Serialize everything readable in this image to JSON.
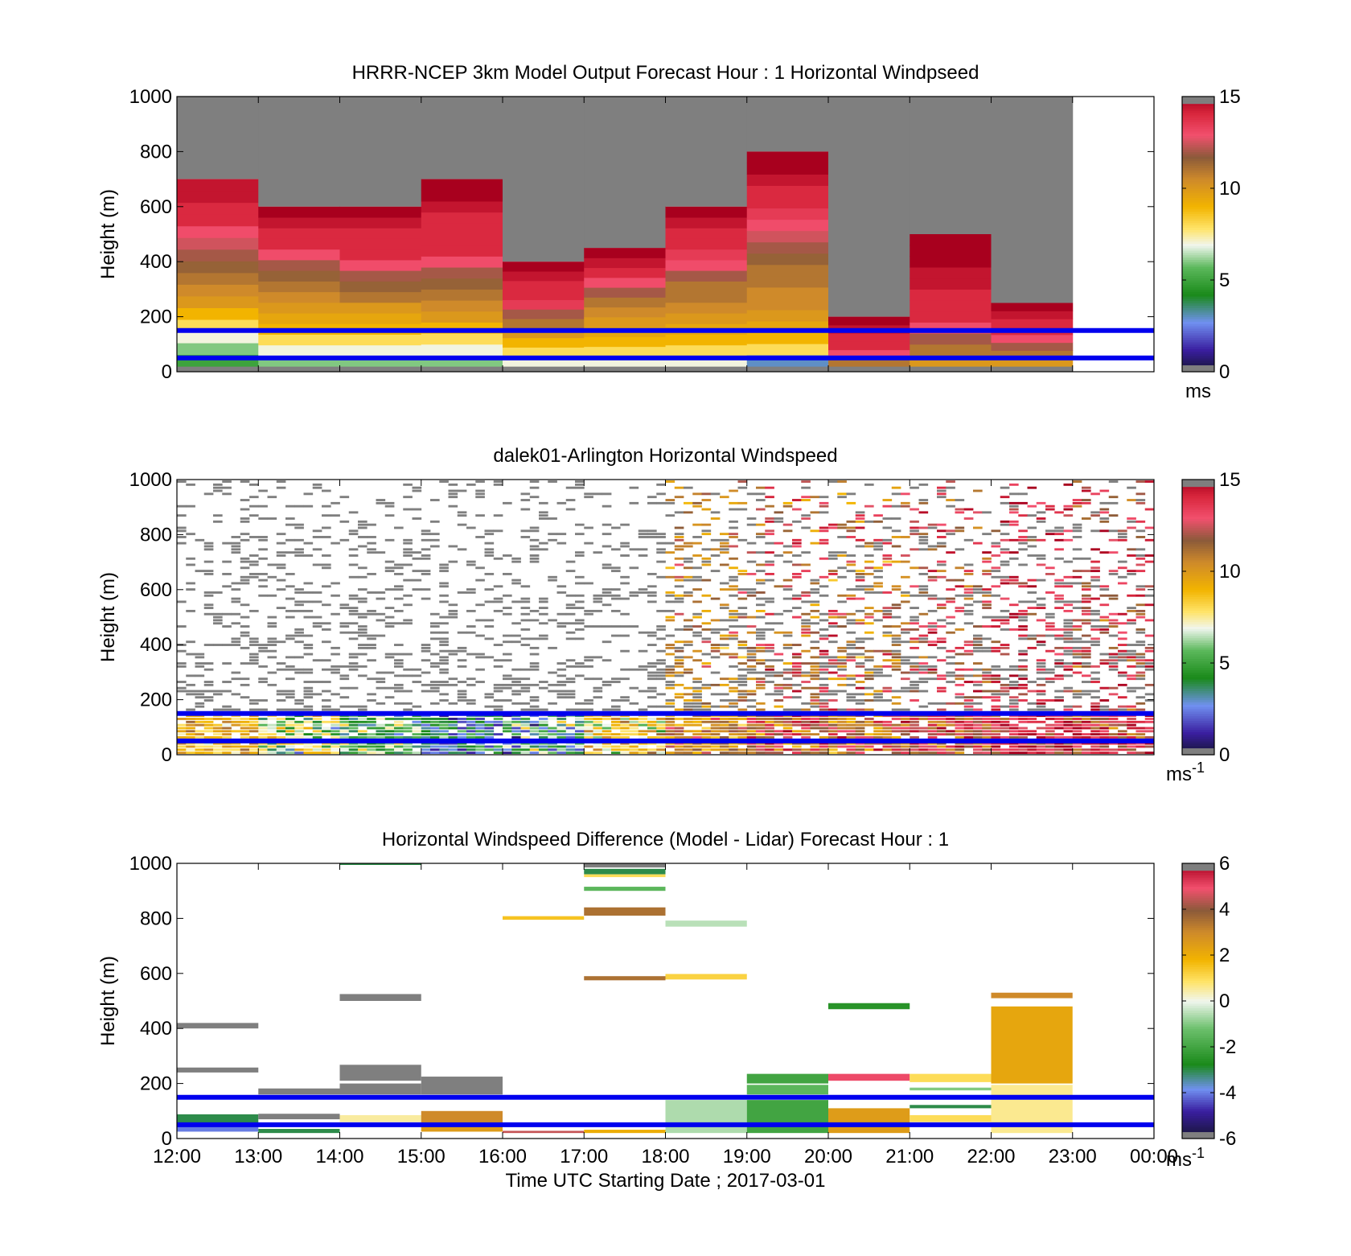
{
  "figure": {
    "xticks": [
      "12:00",
      "13:00",
      "14:00",
      "15:00",
      "16:00",
      "17:00",
      "18:00",
      "19:00",
      "20:00",
      "21:00",
      "22:00",
      "23:00",
      "00:00"
    ],
    "xlabel": "Time UTC  Starting Date ; 2017-03-01",
    "ref_lines_m": [
      150,
      50
    ],
    "ref_line_color": "#0000ee"
  },
  "chart_data": [
    {
      "type": "heatmap",
      "title": "HRRR-NCEP 3km Model Output   Forecast Hour : 1 Horizontal Windpseed",
      "ylabel": "Height (m)",
      "ylim": [
        0,
        1000
      ],
      "yticks": [
        "0",
        "200",
        "400",
        "600",
        "800",
        "1000"
      ],
      "colorbar": {
        "min": 0,
        "max": 15,
        "ticks": [
          "0",
          "5",
          "10",
          "15"
        ],
        "unit": "ms",
        "unit_sup": ""
      },
      "model_columns": [
        {
          "hour": "12:00",
          "top_m": 700,
          "speeds": [
            5,
            6,
            7,
            8,
            9,
            10,
            10.5,
            11,
            11.5,
            12,
            12.5,
            13,
            14,
            14,
            14.5,
            14.5
          ]
        },
        {
          "hour": "13:00",
          "top_m": 600,
          "speeds": [
            6,
            7,
            8,
            9,
            9.5,
            10,
            10.5,
            11,
            11.5,
            12,
            13,
            14,
            14,
            14.5,
            15
          ]
        },
        {
          "hour": "14:00",
          "top_m": 600,
          "speeds": [
            6,
            7,
            8,
            9,
            9.5,
            10,
            11,
            11.5,
            12,
            13,
            14,
            14,
            14,
            14.5,
            15
          ]
        },
        {
          "hour": "15:00",
          "top_m": 700,
          "speeds": [
            6,
            7,
            8,
            9,
            10,
            10.5,
            11,
            11.5,
            12,
            13,
            14,
            14,
            14,
            14,
            14.5,
            15,
            15
          ]
        },
        {
          "hour": "16:00",
          "top_m": 400,
          "speeds": [
            7,
            8,
            9,
            10,
            11,
            12,
            13.5,
            14,
            14,
            14.5,
            15
          ]
        },
        {
          "hour": "17:00",
          "top_m": 450,
          "speeds": [
            7,
            8,
            9,
            9.5,
            10,
            10.5,
            11,
            12,
            13,
            14,
            14.5,
            15
          ]
        },
        {
          "hour": "18:00",
          "top_m": 600,
          "speeds": [
            7,
            8,
            9,
            9.5,
            10,
            10.5,
            11,
            11,
            12,
            13,
            13.5,
            14,
            14,
            14.5,
            15
          ]
        },
        {
          "hour": "19:00",
          "top_m": 800,
          "speeds": [
            3,
            8,
            9,
            9.5,
            10,
            10.5,
            10.5,
            11,
            11,
            11.5,
            12,
            12.5,
            13,
            13.5,
            14,
            14,
            14.5,
            15,
            15
          ]
        },
        {
          "hour": "20:00",
          "top_m": 200,
          "speeds": [
            11,
            13,
            14,
            14,
            14.5,
            15
          ]
        },
        {
          "hour": "21:00",
          "top_m": 500,
          "speeds": [
            10,
            11,
            12,
            13,
            14,
            14,
            14,
            14.5,
            14.5,
            15,
            15,
            15
          ]
        },
        {
          "hour": "22:00",
          "top_m": 250,
          "speeds": [
            10,
            11,
            12,
            13,
            14,
            14,
            14.5,
            15
          ]
        }
      ]
    },
    {
      "type": "heatmap",
      "title": "dalek01-Arlington  Horizontal Windspeed",
      "ylabel": "Height (m)",
      "ylim": [
        0,
        1000
      ],
      "yticks": [
        "0",
        "200",
        "400",
        "600",
        "800",
        "1000"
      ],
      "colorbar": {
        "min": 0,
        "max": 15,
        "ticks": [
          "0",
          "5",
          "10",
          "15"
        ],
        "unit": "ms",
        "unit_sup": "-1"
      },
      "lidar_column_speeds": [
        {
          "hour": "12:00",
          "speeds": [
            9,
            10,
            8,
            10,
            9,
            9,
            8,
            9,
            10,
            8,
            9,
            10
          ]
        },
        {
          "hour": "13:00",
          "speeds": [
            7,
            8,
            4,
            7,
            3,
            8,
            9,
            8,
            7,
            6,
            8,
            5
          ]
        },
        {
          "hour": "14:00",
          "speeds": [
            4,
            6,
            5,
            7,
            6,
            5,
            4,
            6,
            5,
            7,
            5,
            4
          ]
        },
        {
          "hour": "15:00",
          "speeds": [
            3,
            4,
            2,
            3,
            4,
            2,
            3,
            5,
            4,
            3,
            4,
            5
          ]
        },
        {
          "hour": "16:00",
          "speeds": [
            2,
            4,
            6,
            3,
            7,
            5,
            2,
            6,
            4,
            3,
            7,
            5
          ]
        },
        {
          "hour": "17:00",
          "speeds": [
            8,
            9,
            10,
            6,
            8,
            9,
            7,
            10,
            8,
            9,
            7,
            8
          ]
        },
        {
          "hour": "18:00",
          "speeds": [
            9,
            10,
            11,
            10,
            12,
            9,
            11,
            10,
            12,
            11,
            10,
            11
          ]
        },
        {
          "hour": "19:00",
          "speeds": [
            10,
            11,
            12,
            13,
            11,
            14,
            12,
            10,
            13,
            11,
            12,
            14
          ]
        },
        {
          "hour": "20:00",
          "speeds": [
            9,
            10,
            11,
            13,
            12,
            10,
            14,
            11,
            13,
            12,
            10,
            11
          ]
        },
        {
          "hour": "21:00",
          "speeds": [
            11,
            12,
            13,
            14,
            12,
            11,
            13,
            14,
            12,
            13,
            11,
            14
          ]
        },
        {
          "hour": "22:00",
          "speeds": [
            12,
            13,
            14,
            14,
            13,
            15,
            14,
            12,
            13,
            14,
            15,
            13
          ]
        },
        {
          "hour": "23:00",
          "speeds": [
            11,
            12,
            13,
            14,
            14,
            13,
            14,
            12,
            14,
            13,
            12,
            14
          ]
        }
      ]
    },
    {
      "type": "heatmap",
      "title": "Horizontal Windspeed Difference (Model - Lidar) Forecast Hour : 1",
      "ylabel": "Height (m)",
      "ylim": [
        0,
        1000
      ],
      "yticks": [
        "0",
        "200",
        "400",
        "600",
        "800",
        "1000"
      ],
      "colorbar": {
        "min": -6,
        "max": 6,
        "ticks": [
          "-6",
          "-4",
          "-2",
          "0",
          "2",
          "4",
          "6"
        ],
        "unit": "ms",
        "unit_sup": "-1"
      },
      "diff_segments": [
        {
          "hour": "12:00",
          "h0": 400,
          "h1": 420,
          "diff": 6
        },
        {
          "hour": "12:00",
          "h0": 240,
          "h1": 258,
          "diff": 6
        },
        {
          "hour": "12:00",
          "h0": 55,
          "h1": 88,
          "diff": -3
        },
        {
          "hour": "12:00",
          "h0": 25,
          "h1": 55,
          "diff": -4
        },
        {
          "hour": "13:00",
          "h0": 160,
          "h1": 182,
          "diff": 6
        },
        {
          "hour": "13:00",
          "h0": 70,
          "h1": 90,
          "diff": 6
        },
        {
          "hour": "13:00",
          "h0": 20,
          "h1": 35,
          "diff": -3
        },
        {
          "hour": "14:00",
          "h0": 995,
          "h1": 1000,
          "diff": -3
        },
        {
          "hour": "14:00",
          "h0": 500,
          "h1": 525,
          "diff": 6
        },
        {
          "hour": "14:00",
          "h0": 210,
          "h1": 268,
          "diff": 6
        },
        {
          "hour": "14:00",
          "h0": 160,
          "h1": 200,
          "diff": 6
        },
        {
          "hour": "14:00",
          "h0": 60,
          "h1": 85,
          "diff": 0.5
        },
        {
          "hour": "15:00",
          "h0": 160,
          "h1": 225,
          "diff": 6
        },
        {
          "hour": "15:00",
          "h0": 60,
          "h1": 100,
          "diff": 3
        },
        {
          "hour": "15:00",
          "h0": 25,
          "h1": 60,
          "diff": 2.5
        },
        {
          "hour": "16:00",
          "h0": 795,
          "h1": 808,
          "diff": 1.5
        },
        {
          "hour": "16:00",
          "h0": 20,
          "h1": 28,
          "diff": 4.5
        },
        {
          "hour": "17:00",
          "h0": 985,
          "h1": 1000,
          "diff": 6
        },
        {
          "hour": "17:00",
          "h0": 960,
          "h1": 980,
          "diff": -3
        },
        {
          "hour": "17:00",
          "h0": 950,
          "h1": 960,
          "diff": 1
        },
        {
          "hour": "17:00",
          "h0": 900,
          "h1": 915,
          "diff": -1.5
        },
        {
          "hour": "17:00",
          "h0": 810,
          "h1": 840,
          "diff": 3.5
        },
        {
          "hour": "17:00",
          "h0": 575,
          "h1": 590,
          "diff": 3.5
        },
        {
          "hour": "17:00",
          "h0": 20,
          "h1": 32,
          "diff": 2
        },
        {
          "hour": "18:00",
          "h0": 770,
          "h1": 792,
          "diff": -0.5
        },
        {
          "hour": "18:00",
          "h0": 578,
          "h1": 598,
          "diff": 1.2
        },
        {
          "hour": "18:00",
          "h0": 20,
          "h1": 140,
          "diff": -0.6
        },
        {
          "hour": "19:00",
          "h0": 200,
          "h1": 235,
          "diff": -2
        },
        {
          "hour": "19:00",
          "h0": 160,
          "h1": 195,
          "diff": -1.5
        },
        {
          "hour": "19:00",
          "h0": 20,
          "h1": 140,
          "diff": -2
        },
        {
          "hour": "20:00",
          "h0": 470,
          "h1": 492,
          "diff": -2.5
        },
        {
          "hour": "20:00",
          "h0": 210,
          "h1": 235,
          "diff": 5
        },
        {
          "hour": "20:00",
          "h0": 20,
          "h1": 110,
          "diff": 2.5
        },
        {
          "hour": "21:00",
          "h0": 205,
          "h1": 235,
          "diff": 1
        },
        {
          "hour": "21:00",
          "h0": 175,
          "h1": 185,
          "diff": -1
        },
        {
          "hour": "21:00",
          "h0": 110,
          "h1": 122,
          "diff": -3
        },
        {
          "hour": "21:00",
          "h0": 60,
          "h1": 85,
          "diff": 1
        },
        {
          "hour": "22:00",
          "h0": 510,
          "h1": 530,
          "diff": 3
        },
        {
          "hour": "22:00",
          "h0": 200,
          "h1": 480,
          "diff": 2.2
        },
        {
          "hour": "22:00",
          "h0": 20,
          "h1": 195,
          "diff": 0.6
        }
      ]
    }
  ]
}
